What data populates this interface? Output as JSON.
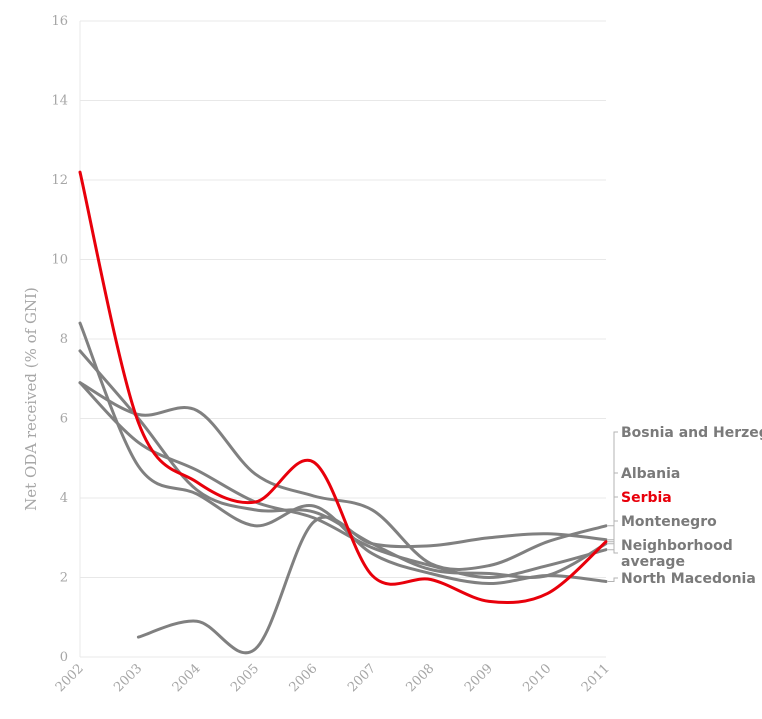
{
  "chart_data": {
    "type": "line",
    "title": "",
    "xlabel": "",
    "ylabel": "Net ODA received (% of GNI)",
    "x": [
      2002,
      2003,
      2004,
      2005,
      2006,
      2007,
      2008,
      2009,
      2010,
      2011
    ],
    "xlim": [
      2002,
      2011
    ],
    "ylim": [
      0,
      16
    ],
    "yticks": [
      0,
      2,
      4,
      6,
      8,
      10,
      12,
      14,
      16
    ],
    "grid": true,
    "legend": "direct labels at right",
    "series": [
      {
        "name": "Bosnia and Herzegovina",
        "color": "#808080",
        "values": [
          6.9,
          6.1,
          6.2,
          4.6,
          4.05,
          3.7,
          2.35,
          2.3,
          2.9,
          3.3
        ]
      },
      {
        "name": "Albania",
        "color": "#808080",
        "values": [
          6.9,
          5.4,
          4.7,
          3.9,
          3.5,
          2.75,
          2.3,
          2.0,
          2.3,
          2.7
        ]
      },
      {
        "name": "Serbia",
        "color": "#e8000b",
        "values": [
          12.2,
          5.9,
          4.4,
          3.9,
          4.9,
          2.05,
          1.95,
          1.4,
          1.6,
          2.9
        ]
      },
      {
        "name": "Montenegro",
        "color": "#808080",
        "values": [
          null,
          0.5,
          0.9,
          0.2,
          3.4,
          2.85,
          2.8,
          3.0,
          3.1,
          2.95
        ]
      },
      {
        "name": "Neighborhood\naverage",
        "color": "#808080",
        "values": [
          7.7,
          6.0,
          4.2,
          3.7,
          3.65,
          2.85,
          2.2,
          2.1,
          2.05,
          2.85
        ]
      },
      {
        "name": "North Macedonia",
        "color": "#808080",
        "values": [
          8.4,
          4.8,
          4.1,
          3.3,
          3.8,
          2.6,
          2.1,
          1.85,
          2.05,
          1.9
        ]
      }
    ]
  }
}
